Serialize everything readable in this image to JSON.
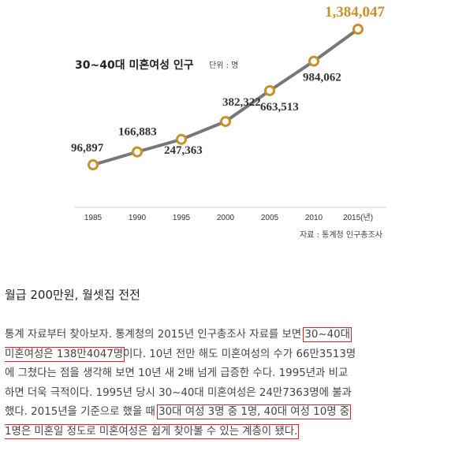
{
  "chart_data": {
    "type": "line",
    "title": "30~40대 미혼여성 인구",
    "unit_label": "단위 : 명",
    "x": [
      "1985",
      "1990",
      "1995",
      "2000",
      "2005",
      "2010",
      "2015"
    ],
    "x_suffix": "(년)",
    "series": [
      {
        "values": [
          96897,
          166883,
          247363,
          382322,
          663513,
          984062,
          1384047
        ]
      }
    ],
    "value_labels": [
      "96,897",
      "166,883",
      "247,363",
      "382,322",
      "663,513",
      "984,062",
      "1,384,047"
    ],
    "colors": {
      "line": "#777777",
      "marker": "#c8902a",
      "highlight_label": "#c8902a",
      "label": "#333333"
    },
    "grid": false,
    "source": "자료 : 통계청 인구총조사"
  },
  "article": {
    "heading": "월급 200만원, 월셋집 전전",
    "lines": [
      [
        "통계 자료부터 찾아보자. 통계청의 2015년 인구총조사 자료를 보면 ",
        {
          "box": "30~40대"
        }
      ],
      [
        {
          "box": "미혼여성은 138만4047명"
        },
        "이다. 10년 전만 해도 미혼여성의 수가 66만3513명"
      ],
      [
        "에 그쳤다는 점을 생각해 보면 10년 새 2배 넘게 급증한 수다. 1995년과 비교"
      ],
      [
        "하면 더욱 극적이다. 1995년 당시 30~40대 미혼여성은 24만7363명에 불과"
      ],
      [
        "했다. 2015년을 기준으로 했을 때 ",
        {
          "box": "30대 여성 3명 중 1명, 40대 여성 10명 중"
        }
      ],
      [
        {
          "box": "1명은 미혼일 정도로 미혼여성은 쉽게 찾아볼 수 있는 계층이 됐다."
        }
      ]
    ]
  }
}
